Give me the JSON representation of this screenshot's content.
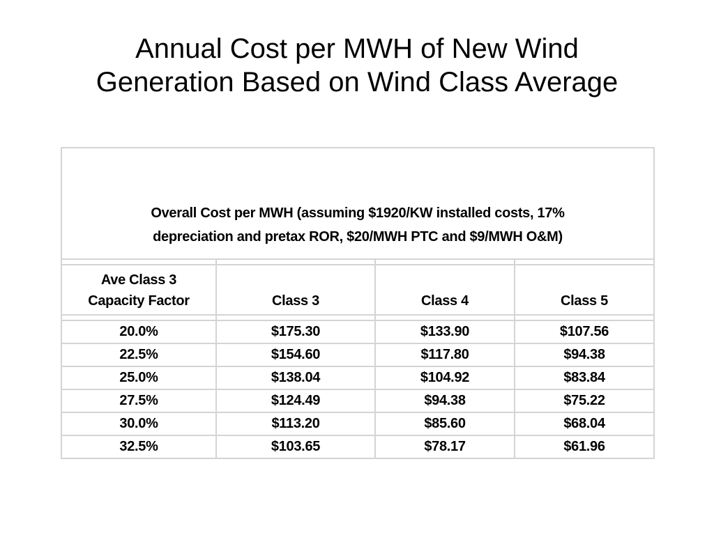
{
  "title": {
    "line1": "Annual Cost per MWH of New Wind",
    "line2": "Generation Based on Wind Class Average"
  },
  "table": {
    "caption_line1": "Overall Cost per MWH (assuming $1920/KW installed costs, 17%",
    "caption_line2": "depreciation and pretax ROR, $20/MWH PTC and $9/MWH O&M)",
    "headers": {
      "capacity_line1": "Ave Class 3",
      "capacity_line2": "Capacity Factor",
      "class3": "Class 3",
      "class4": "Class 4",
      "class5": "Class 5"
    },
    "rows": [
      {
        "capacity": "20.0%",
        "class3": "$175.30",
        "class4": "$133.90",
        "class5": "$107.56"
      },
      {
        "capacity": "22.5%",
        "class3": "$154.60",
        "class4": "$117.80",
        "class5": "$94.38"
      },
      {
        "capacity": "25.0%",
        "class3": "$138.04",
        "class4": "$104.92",
        "class5": "$83.84"
      },
      {
        "capacity": "27.5%",
        "class3": "$124.49",
        "class4": "$94.38",
        "class5": "$75.22"
      },
      {
        "capacity": "30.0%",
        "class3": "$113.20",
        "class4": "$85.60",
        "class5": "$68.04"
      },
      {
        "capacity": "32.5%",
        "class3": "$103.65",
        "class4": "$78.17",
        "class5": "$61.96"
      }
    ]
  }
}
